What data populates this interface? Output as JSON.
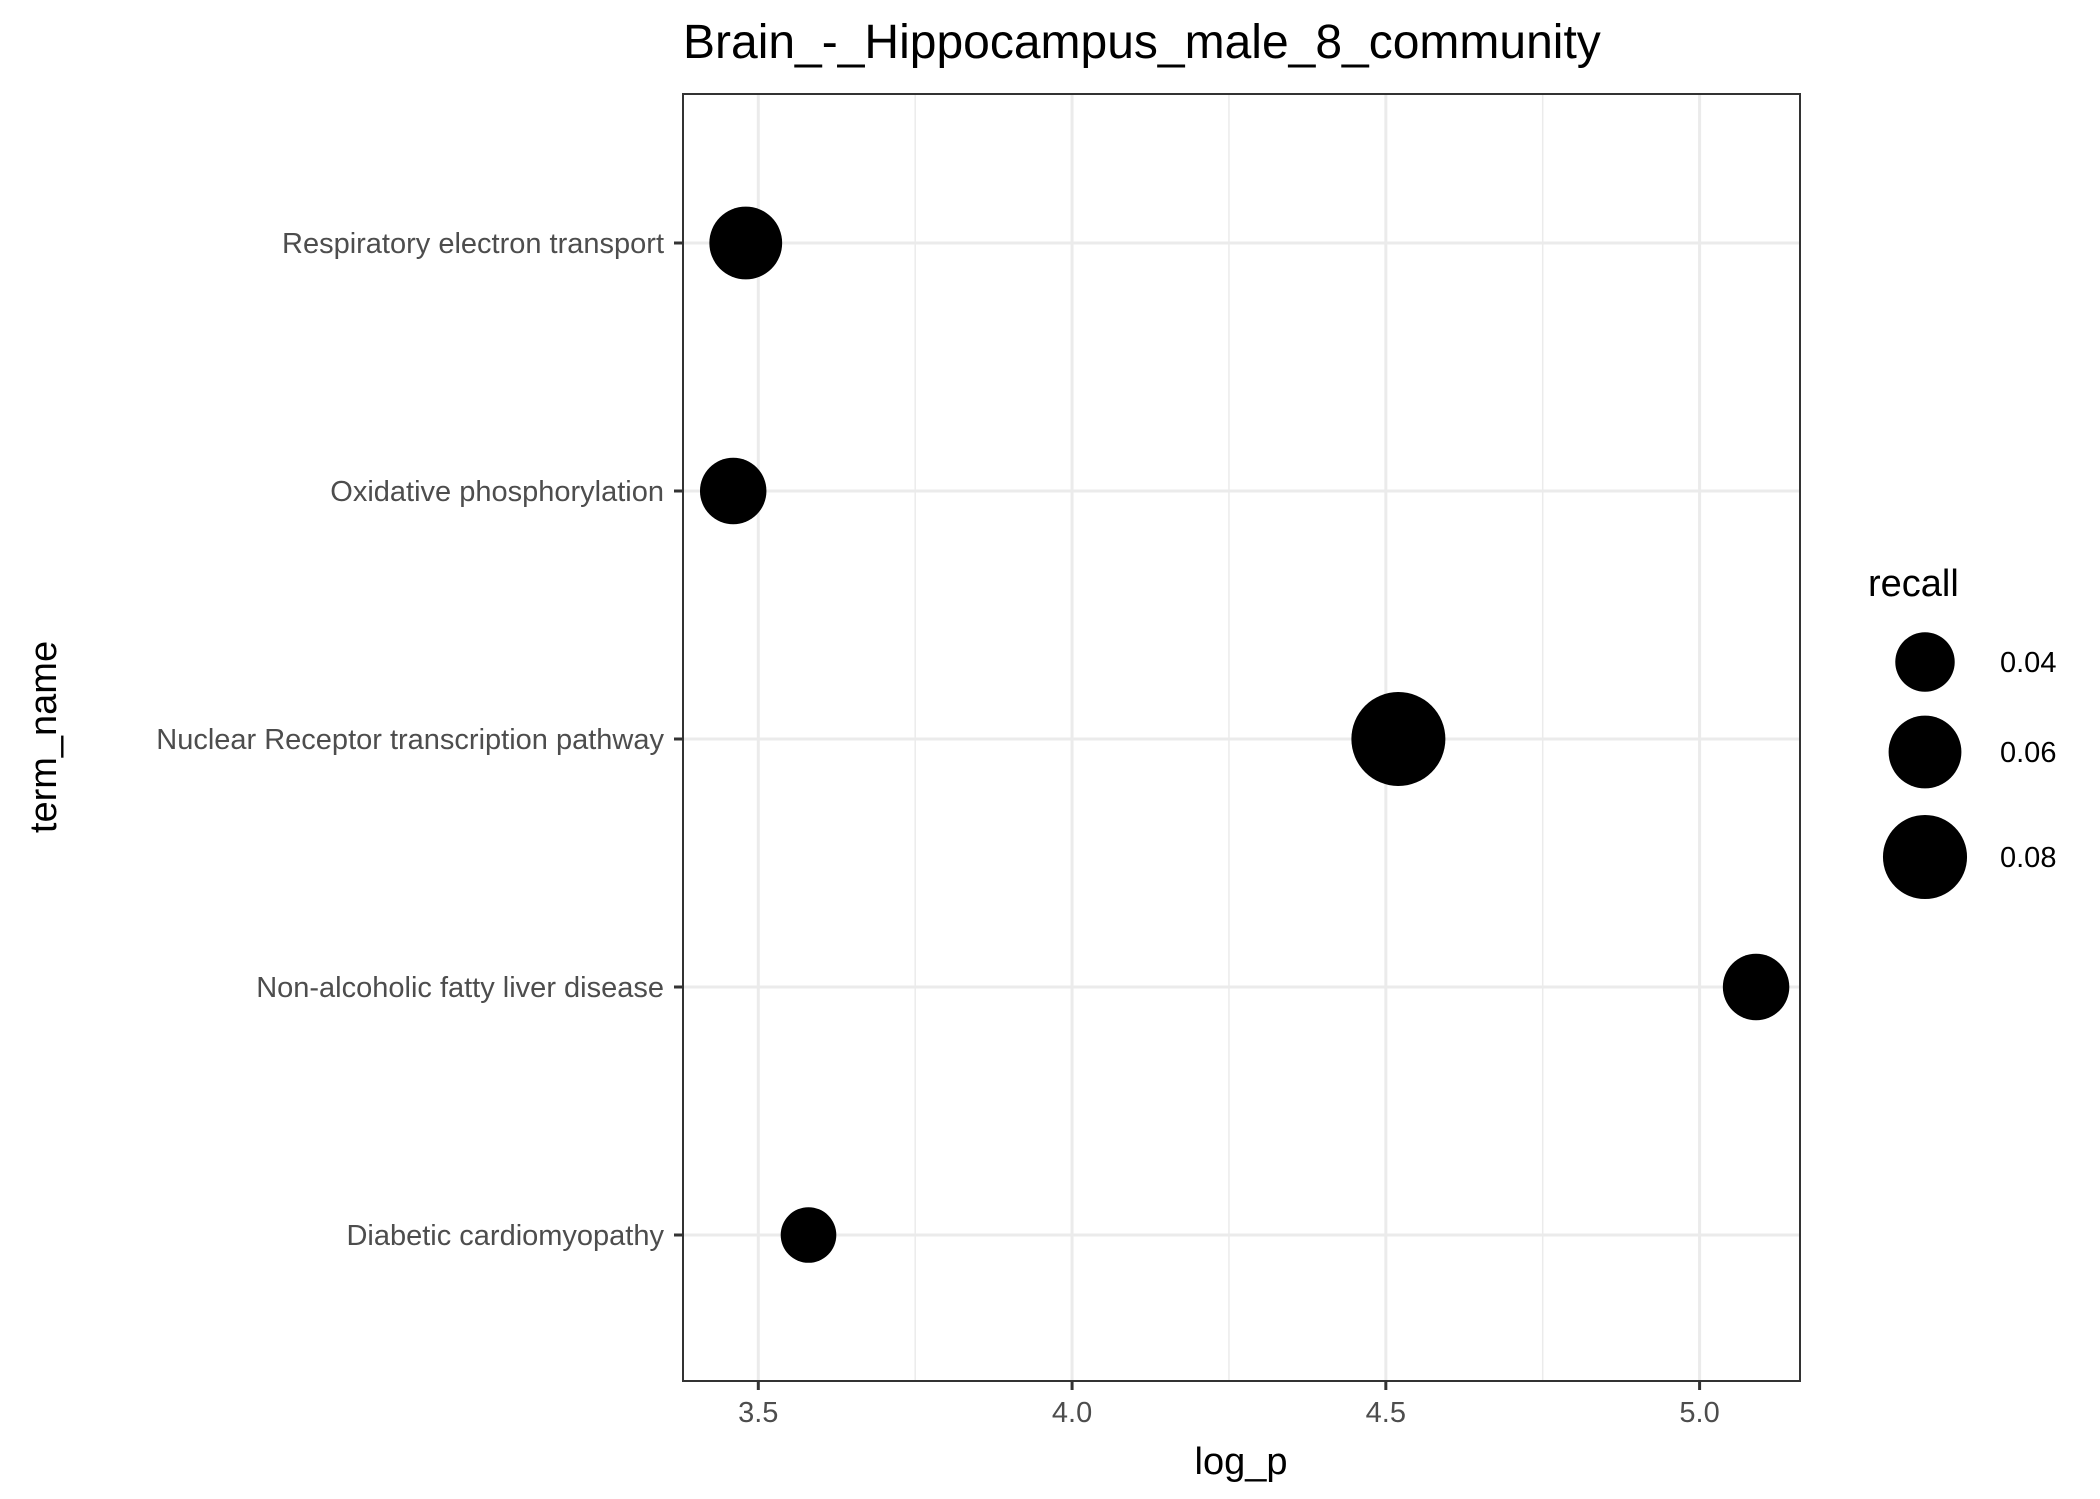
{
  "chart_data": {
    "type": "scatter",
    "title": "Brain_-_Hippocampus_male_8_community",
    "xlabel": "log_p",
    "ylabel": "term_name",
    "xlim": [
      3.38,
      5.16
    ],
    "x_ticks": [
      3.5,
      4.0,
      4.5,
      5.0
    ],
    "x_tick_labels": [
      "3.5",
      "4.0",
      "4.5",
      "5.0"
    ],
    "categories": [
      "Respiratory electron transport",
      "Oxidative phosphorylation",
      "Nuclear Receptor transcription pathway",
      "Non-alcoholic fatty liver disease",
      "Diabetic cardiomyopathy"
    ],
    "points": [
      {
        "term_name": "Respiratory electron transport",
        "log_p": 3.48,
        "recall": 0.06
      },
      {
        "term_name": "Oxidative phosphorylation",
        "log_p": 3.46,
        "recall": 0.05
      },
      {
        "term_name": "Nuclear Receptor transcription pathway",
        "log_p": 4.52,
        "recall": 0.1
      },
      {
        "term_name": "Non-alcoholic fatty liver disease",
        "log_p": 5.09,
        "recall": 0.05
      },
      {
        "term_name": "Diabetic cardiomyopathy",
        "log_p": 3.58,
        "recall": 0.035
      }
    ],
    "size_legend": {
      "title": "recall",
      "values": [
        0.04,
        0.06,
        0.08
      ],
      "labels": [
        "0.04",
        "0.06",
        "0.08"
      ]
    },
    "legend_position": "right",
    "grid": true,
    "point_color": "#000000"
  }
}
